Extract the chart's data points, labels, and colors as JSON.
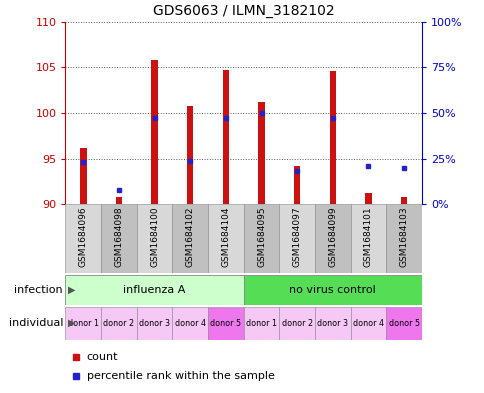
{
  "title": "GDS6063 / ILMN_3182102",
  "samples": [
    "GSM1684096",
    "GSM1684098",
    "GSM1684100",
    "GSM1684102",
    "GSM1684104",
    "GSM1684095",
    "GSM1684097",
    "GSM1684099",
    "GSM1684101",
    "GSM1684103"
  ],
  "count_values": [
    96.2,
    90.8,
    105.8,
    100.8,
    104.7,
    101.2,
    94.2,
    104.6,
    91.2,
    90.8
  ],
  "percentile_values": [
    23,
    8,
    47,
    24,
    47,
    50,
    18,
    47,
    21,
    20
  ],
  "ylim_left": [
    90,
    110
  ],
  "ylim_right": [
    0,
    100
  ],
  "yticks_left": [
    90,
    95,
    100,
    105,
    110
  ],
  "ytick_labels_left": [
    "90",
    "95",
    "100",
    "105",
    "110"
  ],
  "yticks_right": [
    0,
    25,
    50,
    75,
    100
  ],
  "ytick_labels_right": [
    "0%",
    "25%",
    "50%",
    "75%",
    "100%"
  ],
  "infection_labels": [
    "influenza A",
    "no virus control"
  ],
  "infection_color_light": "#ccffcc",
  "infection_color_dark": "#55dd55",
  "individual_colors_alt": [
    "#f5c8f5",
    "#f5c8f5",
    "#f5c8f5",
    "#f5c8f5",
    "#ee77ee",
    "#f5c8f5",
    "#f5c8f5",
    "#f5c8f5",
    "#f5c8f5",
    "#ee77ee"
  ],
  "individual_labels": [
    "donor 1",
    "donor 2",
    "donor 3",
    "donor 4",
    "donor 5",
    "donor 1",
    "donor 2",
    "donor 3",
    "donor 4",
    "donor 5"
  ],
  "bar_color": "#cc1111",
  "blue_color": "#2222cc",
  "base_value": 90,
  "left_tick_color": "#cc0000",
  "right_tick_color": "#0000cc",
  "grid_color": "#555555",
  "plot_bg_color": "#ffffff",
  "sample_bg_light": "#d8d8d8",
  "sample_bg_dark": "#c0c0c0",
  "border_color": "#888888"
}
